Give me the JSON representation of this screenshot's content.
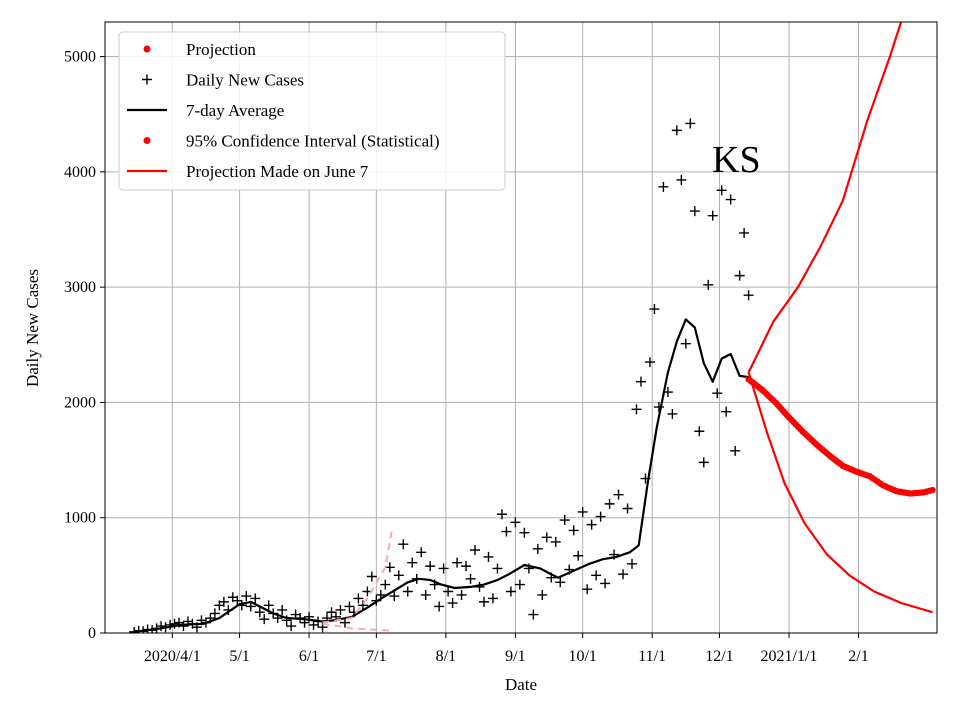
{
  "chart_data": {
    "type": "scatter",
    "title": "",
    "annotation": "KS",
    "xlabel": "Date",
    "ylabel": "Daily New Cases",
    "ylim": [
      0,
      5300
    ],
    "xlim": [
      "2020-03-02",
      "2021-03-08"
    ],
    "grid": true,
    "legend_position": "top-left",
    "x_ticks": [
      {
        "date": "2020-04-01",
        "label": "2020/4/1"
      },
      {
        "date": "2020-05-01",
        "label": "5/1"
      },
      {
        "date": "2020-06-01",
        "label": "6/1"
      },
      {
        "date": "2020-07-01",
        "label": "7/1"
      },
      {
        "date": "2020-08-01",
        "label": "8/1"
      },
      {
        "date": "2020-09-01",
        "label": "9/1"
      },
      {
        "date": "2020-10-01",
        "label": "10/1"
      },
      {
        "date": "2020-11-01",
        "label": "11/1"
      },
      {
        "date": "2020-12-01",
        "label": "12/1"
      },
      {
        "date": "2021-01-01",
        "label": "2021/1/1"
      },
      {
        "date": "2021-02-01",
        "label": "2/1"
      }
    ],
    "y_ticks": [
      0,
      1000,
      2000,
      3000,
      4000,
      5000
    ],
    "legend": [
      {
        "label": "Projection",
        "style": "dot",
        "color": "#ff0000"
      },
      {
        "label": "Daily New Cases",
        "style": "plus",
        "color": "#000000"
      },
      {
        "label": "7-day Average",
        "style": "line",
        "color": "#000000"
      },
      {
        "label": "95% Confidence Interval (Statistical)",
        "style": "dot",
        "color": "#ff0000"
      },
      {
        "label": "Projection Made on June 7",
        "style": "line",
        "color": "#ff0000"
      }
    ],
    "series": [
      {
        "name": "Daily New Cases",
        "style": "plus",
        "color": "#000000",
        "points": [
          [
            "2020-03-15",
            10
          ],
          [
            "2020-03-17",
            20
          ],
          [
            "2020-03-19",
            15
          ],
          [
            "2020-03-21",
            30
          ],
          [
            "2020-03-23",
            25
          ],
          [
            "2020-03-25",
            40
          ],
          [
            "2020-03-27",
            60
          ],
          [
            "2020-03-29",
            50
          ],
          [
            "2020-03-31",
            70
          ],
          [
            "2020-04-02",
            80
          ],
          [
            "2020-04-04",
            90
          ],
          [
            "2020-04-06",
            60
          ],
          [
            "2020-04-08",
            100
          ],
          [
            "2020-04-10",
            80
          ],
          [
            "2020-04-12",
            50
          ],
          [
            "2020-04-14",
            110
          ],
          [
            "2020-04-16",
            90
          ],
          [
            "2020-04-18",
            130
          ],
          [
            "2020-04-20",
            170
          ],
          [
            "2020-04-22",
            240
          ],
          [
            "2020-04-24",
            270
          ],
          [
            "2020-04-26",
            200
          ],
          [
            "2020-04-28",
            310
          ],
          [
            "2020-04-30",
            280
          ],
          [
            "2020-05-02",
            240
          ],
          [
            "2020-05-04",
            320
          ],
          [
            "2020-05-06",
            230
          ],
          [
            "2020-05-08",
            300
          ],
          [
            "2020-05-10",
            180
          ],
          [
            "2020-05-12",
            120
          ],
          [
            "2020-05-14",
            240
          ],
          [
            "2020-05-16",
            170
          ],
          [
            "2020-05-18",
            130
          ],
          [
            "2020-05-20",
            200
          ],
          [
            "2020-05-22",
            110
          ],
          [
            "2020-05-24",
            60
          ],
          [
            "2020-05-26",
            160
          ],
          [
            "2020-05-28",
            130
          ],
          [
            "2020-05-30",
            90
          ],
          [
            "2020-06-01",
            140
          ],
          [
            "2020-06-03",
            70
          ],
          [
            "2020-06-05",
            100
          ],
          [
            "2020-06-07",
            50
          ],
          [
            "2020-06-09",
            130
          ],
          [
            "2020-06-11",
            180
          ],
          [
            "2020-06-13",
            140
          ],
          [
            "2020-06-15",
            200
          ],
          [
            "2020-06-17",
            90
          ],
          [
            "2020-06-19",
            230
          ],
          [
            "2020-06-21",
            180
          ],
          [
            "2020-06-23",
            300
          ],
          [
            "2020-06-25",
            240
          ],
          [
            "2020-06-27",
            360
          ],
          [
            "2020-06-29",
            490
          ],
          [
            "2020-07-01",
            280
          ],
          [
            "2020-07-03",
            330
          ],
          [
            "2020-07-05",
            420
          ],
          [
            "2020-07-07",
            570
          ],
          [
            "2020-07-09",
            320
          ],
          [
            "2020-07-11",
            500
          ],
          [
            "2020-07-13",
            770
          ],
          [
            "2020-07-15",
            360
          ],
          [
            "2020-07-17",
            610
          ],
          [
            "2020-07-19",
            470
          ],
          [
            "2020-07-21",
            700
          ],
          [
            "2020-07-23",
            330
          ],
          [
            "2020-07-25",
            580
          ],
          [
            "2020-07-27",
            420
          ],
          [
            "2020-07-29",
            230
          ],
          [
            "2020-07-31",
            560
          ],
          [
            "2020-08-02",
            360
          ],
          [
            "2020-08-04",
            260
          ],
          [
            "2020-08-06",
            610
          ],
          [
            "2020-08-08",
            330
          ],
          [
            "2020-08-10",
            580
          ],
          [
            "2020-08-12",
            470
          ],
          [
            "2020-08-14",
            720
          ],
          [
            "2020-08-16",
            400
          ],
          [
            "2020-08-18",
            270
          ],
          [
            "2020-08-20",
            660
          ],
          [
            "2020-08-22",
            300
          ],
          [
            "2020-08-24",
            560
          ],
          [
            "2020-08-26",
            1030
          ],
          [
            "2020-08-28",
            880
          ],
          [
            "2020-08-30",
            360
          ],
          [
            "2020-09-01",
            960
          ],
          [
            "2020-09-03",
            420
          ],
          [
            "2020-09-05",
            870
          ],
          [
            "2020-09-07",
            560
          ],
          [
            "2020-09-09",
            160
          ],
          [
            "2020-09-11",
            730
          ],
          [
            "2020-09-13",
            330
          ],
          [
            "2020-09-15",
            830
          ],
          [
            "2020-09-17",
            480
          ],
          [
            "2020-09-19",
            790
          ],
          [
            "2020-09-21",
            440
          ],
          [
            "2020-09-23",
            980
          ],
          [
            "2020-09-25",
            550
          ],
          [
            "2020-09-27",
            890
          ],
          [
            "2020-09-29",
            670
          ],
          [
            "2020-10-01",
            1050
          ],
          [
            "2020-10-03",
            380
          ],
          [
            "2020-10-05",
            940
          ],
          [
            "2020-10-07",
            500
          ],
          [
            "2020-10-09",
            1010
          ],
          [
            "2020-10-11",
            430
          ],
          [
            "2020-10-13",
            1120
          ],
          [
            "2020-10-15",
            680
          ],
          [
            "2020-10-17",
            1200
          ],
          [
            "2020-10-19",
            510
          ],
          [
            "2020-10-21",
            1080
          ],
          [
            "2020-10-23",
            600
          ],
          [
            "2020-10-25",
            1940
          ],
          [
            "2020-10-27",
            2180
          ],
          [
            "2020-10-29",
            1340
          ],
          [
            "2020-10-31",
            2350
          ],
          [
            "2020-11-02",
            2810
          ],
          [
            "2020-11-04",
            1960
          ],
          [
            "2020-11-06",
            3870
          ],
          [
            "2020-11-08",
            2090
          ],
          [
            "2020-11-10",
            1900
          ],
          [
            "2020-11-12",
            4360
          ],
          [
            "2020-11-14",
            3930
          ],
          [
            "2020-11-16",
            2510
          ],
          [
            "2020-11-18",
            4420
          ],
          [
            "2020-11-20",
            3660
          ],
          [
            "2020-11-22",
            1750
          ],
          [
            "2020-11-24",
            1480
          ],
          [
            "2020-11-26",
            3020
          ],
          [
            "2020-11-28",
            3620
          ],
          [
            "2020-11-30",
            2080
          ],
          [
            "2020-12-02",
            3840
          ],
          [
            "2020-12-04",
            1920
          ],
          [
            "2020-12-06",
            3760
          ],
          [
            "2020-12-08",
            1580
          ],
          [
            "2020-12-10",
            3100
          ],
          [
            "2020-12-12",
            3470
          ],
          [
            "2020-12-14",
            2930
          ]
        ]
      },
      {
        "name": "7-day Average",
        "style": "line",
        "color": "#000000",
        "points": [
          [
            "2020-03-15",
            10
          ],
          [
            "2020-03-25",
            35
          ],
          [
            "2020-04-05",
            70
          ],
          [
            "2020-04-15",
            80
          ],
          [
            "2020-04-22",
            130
          ],
          [
            "2020-05-01",
            250
          ],
          [
            "2020-05-06",
            270
          ],
          [
            "2020-05-10",
            230
          ],
          [
            "2020-05-16",
            170
          ],
          [
            "2020-05-22",
            130
          ],
          [
            "2020-05-30",
            120
          ],
          [
            "2020-06-07",
            100
          ],
          [
            "2020-06-12",
            110
          ],
          [
            "2020-06-20",
            140
          ],
          [
            "2020-06-27",
            220
          ],
          [
            "2020-07-04",
            310
          ],
          [
            "2020-07-10",
            380
          ],
          [
            "2020-07-15",
            440
          ],
          [
            "2020-07-20",
            470
          ],
          [
            "2020-07-25",
            460
          ],
          [
            "2020-07-30",
            420
          ],
          [
            "2020-08-05",
            390
          ],
          [
            "2020-08-12",
            400
          ],
          [
            "2020-08-18",
            420
          ],
          [
            "2020-08-24",
            460
          ],
          [
            "2020-08-30",
            520
          ],
          [
            "2020-09-05",
            590
          ],
          [
            "2020-09-12",
            560
          ],
          [
            "2020-09-16",
            520
          ],
          [
            "2020-09-20",
            480
          ],
          [
            "2020-09-27",
            540
          ],
          [
            "2020-10-04",
            600
          ],
          [
            "2020-10-10",
            640
          ],
          [
            "2020-10-16",
            660
          ],
          [
            "2020-10-22",
            700
          ],
          [
            "2020-10-26",
            760
          ],
          [
            "2020-10-30",
            1300
          ],
          [
            "2020-11-03",
            1780
          ],
          [
            "2020-11-08",
            2260
          ],
          [
            "2020-11-12",
            2530
          ],
          [
            "2020-11-16",
            2720
          ],
          [
            "2020-11-20",
            2650
          ],
          [
            "2020-11-24",
            2340
          ],
          [
            "2020-11-28",
            2180
          ],
          [
            "2020-12-02",
            2380
          ],
          [
            "2020-12-06",
            2420
          ],
          [
            "2020-12-10",
            2230
          ],
          [
            "2020-12-14",
            2220
          ]
        ]
      },
      {
        "name": "Projection",
        "style": "dot",
        "color": "#ff0000",
        "points": [
          [
            "2020-12-14",
            2200
          ],
          [
            "2020-12-20",
            2110
          ],
          [
            "2020-12-26",
            2000
          ],
          [
            "2021-01-01",
            1870
          ],
          [
            "2021-01-07",
            1750
          ],
          [
            "2021-01-13",
            1640
          ],
          [
            "2021-01-19",
            1540
          ],
          [
            "2021-01-25",
            1450
          ],
          [
            "2021-01-31",
            1400
          ],
          [
            "2021-02-06",
            1360
          ],
          [
            "2021-02-12",
            1280
          ],
          [
            "2021-02-18",
            1230
          ],
          [
            "2021-02-24",
            1210
          ],
          [
            "2021-03-02",
            1220
          ],
          [
            "2021-03-06",
            1240
          ]
        ]
      },
      {
        "name": "Projection Made on June 7",
        "style": "line",
        "color": "#ff0000",
        "points": [
          [
            "2020-12-14",
            2260
          ],
          [
            "2020-12-25",
            2700
          ],
          [
            "2021-01-05",
            3000
          ],
          [
            "2021-01-15",
            3350
          ],
          [
            "2021-01-25",
            3750
          ],
          [
            "2021-02-05",
            4450
          ],
          [
            "2021-02-15",
            5000
          ],
          [
            "2021-02-20",
            5300
          ]
        ]
      },
      {
        "name": "",
        "style": "line",
        "color": "#ff0000",
        "points": [
          [
            "2020-12-14",
            2260
          ],
          [
            "2020-12-22",
            1750
          ],
          [
            "2020-12-30",
            1300
          ],
          [
            "2021-01-08",
            950
          ],
          [
            "2021-01-18",
            680
          ],
          [
            "2021-01-28",
            500
          ],
          [
            "2021-02-08",
            360
          ],
          [
            "2021-02-20",
            260
          ],
          [
            "2021-03-06",
            180
          ]
        ]
      },
      {
        "name": "",
        "style": "dashed",
        "color": "#f4b0b0",
        "points": [
          [
            "2020-06-07",
            90
          ],
          [
            "2020-06-20",
            130
          ],
          [
            "2020-06-27",
            300
          ],
          [
            "2020-07-05",
            570
          ],
          [
            "2020-07-08",
            900
          ]
        ]
      },
      {
        "name": "",
        "style": "dashed",
        "color": "#f4b0b0",
        "points": [
          [
            "2020-06-07",
            80
          ],
          [
            "2020-06-20",
            40
          ],
          [
            "2020-07-08",
            20
          ]
        ]
      }
    ]
  }
}
